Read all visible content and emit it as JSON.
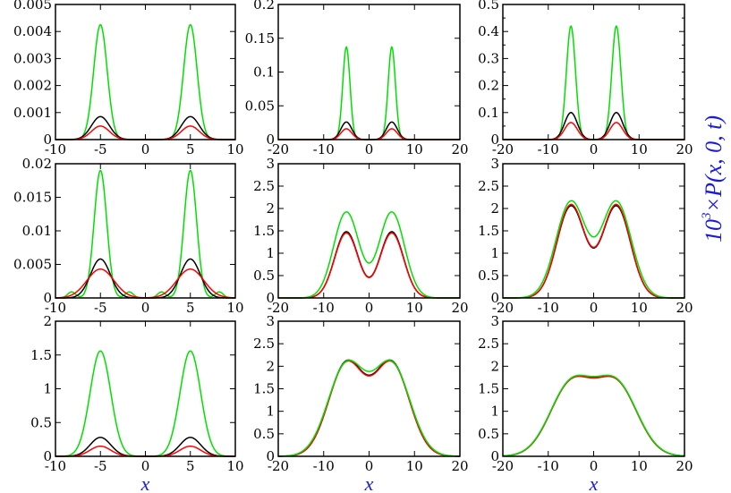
{
  "figure": {
    "ylabel_prefix": "10",
    "ylabel_exponent": "3",
    "ylabel_rest": "×P(x, 0, t)",
    "xlabel": "x"
  },
  "chart_data": [
    {
      "type": "line",
      "row": 0,
      "col": 0,
      "xlim": [
        -10,
        10
      ],
      "ylim": [
        0,
        0.005
      ],
      "xticks": [
        -10,
        -5,
        0,
        5,
        10
      ],
      "yticks": [
        0,
        0.001,
        0.002,
        0.003,
        0.004,
        0.005
      ],
      "xtick_labels": [
        "-10",
        "-5",
        "0",
        "5",
        "10"
      ],
      "ytick_labels": [
        "0",
        "0.001",
        "0.002",
        "0.003",
        "0.004",
        "0.005"
      ],
      "xlabel": "",
      "series": [
        {
          "color": "#00e000",
          "peaks": [
            {
              "mu": -5,
              "sigma": 0.75,
              "amp": 0.00425
            },
            {
              "mu": 5,
              "sigma": 0.75,
              "amp": 0.00425
            }
          ]
        },
        {
          "color": "#000000",
          "peaks": [
            {
              "mu": -5,
              "sigma": 1.0,
              "amp": 0.00085
            },
            {
              "mu": 5,
              "sigma": 1.0,
              "amp": 0.00085
            }
          ]
        },
        {
          "color": "#ff0000",
          "peaks": [
            {
              "mu": -5,
              "sigma": 1.0,
              "amp": 0.0005
            },
            {
              "mu": 5,
              "sigma": 1.0,
              "amp": 0.0005
            }
          ]
        }
      ]
    },
    {
      "type": "line",
      "row": 0,
      "col": 1,
      "xlim": [
        -20,
        20
      ],
      "ylim": [
        0,
        0.2
      ],
      "xticks": [
        -20,
        -10,
        0,
        10,
        20
      ],
      "yticks": [
        0,
        0.05,
        0.1,
        0.15,
        0.2
      ],
      "xtick_labels": [
        "-20",
        "-10",
        "0",
        "10",
        "20"
      ],
      "ytick_labels": [
        "0",
        "0.05",
        "0.1",
        "0.15",
        "0.2"
      ],
      "xlabel": "",
      "series": [
        {
          "color": "#00e000",
          "peaks": [
            {
              "mu": -5,
              "sigma": 0.8,
              "amp": 0.137
            },
            {
              "mu": 5,
              "sigma": 0.8,
              "amp": 0.137
            }
          ]
        },
        {
          "color": "#000000",
          "peaks": [
            {
              "mu": -5,
              "sigma": 1.2,
              "amp": 0.026
            },
            {
              "mu": 5,
              "sigma": 1.2,
              "amp": 0.026
            }
          ]
        },
        {
          "color": "#ff0000",
          "peaks": [
            {
              "mu": -5,
              "sigma": 1.2,
              "amp": 0.016
            },
            {
              "mu": 5,
              "sigma": 1.2,
              "amp": 0.016
            }
          ]
        }
      ]
    },
    {
      "type": "line",
      "row": 0,
      "col": 2,
      "xlim": [
        -20,
        20
      ],
      "ylim": [
        0,
        0.5
      ],
      "xticks": [
        -20,
        -10,
        0,
        10,
        20
      ],
      "yticks": [
        0,
        0.05,
        0.1,
        0.15,
        0.2,
        0.25,
        0.3,
        0.35,
        0.4,
        0.45,
        0.5
      ],
      "xtick_labels": [
        "-20",
        "-10",
        "0",
        "10",
        "20"
      ],
      "ytick_labels": [
        "0",
        "",
        "0.1",
        "",
        "0.2",
        "",
        "0.3",
        "",
        "0.4",
        "",
        "0.5"
      ],
      "xlabel": "",
      "series": [
        {
          "color": "#00e000",
          "peaks": [
            {
              "mu": -5,
              "sigma": 1.0,
              "amp": 0.42
            },
            {
              "mu": 5,
              "sigma": 1.0,
              "amp": 0.42
            }
          ]
        },
        {
          "color": "#000000",
          "peaks": [
            {
              "mu": -5,
              "sigma": 1.4,
              "amp": 0.1
            },
            {
              "mu": 5,
              "sigma": 1.4,
              "amp": 0.1
            }
          ]
        },
        {
          "color": "#ff0000",
          "peaks": [
            {
              "mu": -5,
              "sigma": 1.4,
              "amp": 0.063
            },
            {
              "mu": 5,
              "sigma": 1.4,
              "amp": 0.063
            }
          ]
        }
      ]
    },
    {
      "type": "line",
      "row": 1,
      "col": 0,
      "xlim": [
        -10,
        10
      ],
      "ylim": [
        0,
        0.02
      ],
      "xticks": [
        -10,
        -5,
        0,
        5,
        10
      ],
      "yticks": [
        0,
        0.005,
        0.01,
        0.015,
        0.02
      ],
      "xtick_labels": [
        "-10",
        "-5",
        "0",
        "5",
        "10"
      ],
      "ytick_labels": [
        "0",
        "0.005",
        "0.01",
        "0.015",
        "0.02"
      ],
      "xlabel": "",
      "series": [
        {
          "color": "#00e000",
          "peaks": [
            {
              "mu": -5,
              "sigma": 0.7,
              "amp": 0.019
            },
            {
              "mu": 5,
              "sigma": 0.7,
              "amp": 0.019
            },
            {
              "mu": -8.2,
              "sigma": 0.45,
              "amp": 0.0009
            },
            {
              "mu": -1.8,
              "sigma": 0.45,
              "amp": 0.0009
            },
            {
              "mu": 1.8,
              "sigma": 0.45,
              "amp": 0.0009
            },
            {
              "mu": 8.2,
              "sigma": 0.45,
              "amp": 0.0009
            }
          ]
        },
        {
          "color": "#000000",
          "peaks": [
            {
              "mu": -5,
              "sigma": 1.1,
              "amp": 0.0058
            },
            {
              "mu": 5,
              "sigma": 1.1,
              "amp": 0.0058
            }
          ]
        },
        {
          "color": "#ff0000",
          "peaks": [
            {
              "mu": -5,
              "sigma": 1.5,
              "amp": 0.0043
            },
            {
              "mu": 5,
              "sigma": 1.5,
              "amp": 0.0043
            }
          ]
        }
      ]
    },
    {
      "type": "line",
      "row": 1,
      "col": 1,
      "xlim": [
        -20,
        20
      ],
      "ylim": [
        0,
        3
      ],
      "xticks": [
        -20,
        -10,
        0,
        10,
        20
      ],
      "yticks": [
        0,
        0.5,
        1,
        1.5,
        2,
        2.5,
        3
      ],
      "xtick_labels": [
        "-20",
        "-10",
        "0",
        "10",
        "20"
      ],
      "ytick_labels": [
        "0",
        "0.5",
        "1",
        "1.5",
        "2",
        "2.5",
        "3"
      ],
      "xlabel": "",
      "series": [
        {
          "color": "#000000",
          "peaks": [
            {
              "mu": -5,
              "sigma": 2.6,
              "amp": 1.48
            },
            {
              "mu": 5,
              "sigma": 2.6,
              "amp": 1.48
            }
          ]
        },
        {
          "color": "#ff0000",
          "peaks": [
            {
              "mu": -5,
              "sigma": 2.6,
              "amp": 1.45
            },
            {
              "mu": 5,
              "sigma": 2.6,
              "amp": 1.45
            }
          ]
        },
        {
          "color": "#00e000",
          "peaks": [
            {
              "mu": -5,
              "sigma": 2.8,
              "amp": 1.92
            },
            {
              "mu": 5,
              "sigma": 2.8,
              "amp": 1.92
            }
          ]
        }
      ]
    },
    {
      "type": "line",
      "row": 1,
      "col": 2,
      "xlim": [
        -20,
        20
      ],
      "ylim": [
        0,
        3
      ],
      "xticks": [
        -20,
        -10,
        0,
        10,
        20
      ],
      "yticks": [
        0,
        0.5,
        1,
        1.5,
        2,
        2.5,
        3
      ],
      "xtick_labels": [
        "-20",
        "-10",
        "0",
        "10",
        "20"
      ],
      "ytick_labels": [
        "0",
        "0.5",
        "1",
        "1.5",
        "2",
        "2.5",
        "3"
      ],
      "xlabel": "",
      "series": [
        {
          "color": "#000000",
          "peaks": [
            {
              "mu": -5,
              "sigma": 3.1,
              "amp": 2.05
            },
            {
              "mu": 5,
              "sigma": 3.1,
              "amp": 2.05
            }
          ]
        },
        {
          "color": "#ff0000",
          "peaks": [
            {
              "mu": -5,
              "sigma": 3.1,
              "amp": 2.08
            },
            {
              "mu": 5,
              "sigma": 3.1,
              "amp": 2.08
            }
          ]
        },
        {
          "color": "#00e000",
          "peaks": [
            {
              "mu": -5,
              "sigma": 3.3,
              "amp": 2.15
            },
            {
              "mu": 5,
              "sigma": 3.3,
              "amp": 2.15
            }
          ]
        }
      ]
    },
    {
      "type": "line",
      "row": 2,
      "col": 0,
      "xlim": [
        -10,
        10
      ],
      "ylim": [
        0,
        2
      ],
      "xticks": [
        -10,
        -5,
        0,
        5,
        10
      ],
      "yticks": [
        0,
        0.5,
        1,
        1.5,
        2
      ],
      "xtick_labels": [
        "-10",
        "-5",
        "0",
        "5",
        "10"
      ],
      "ytick_labels": [
        "0",
        "0.5",
        "1",
        "1.5",
        "2"
      ],
      "xlabel": "x",
      "series": [
        {
          "color": "#00e000",
          "peaks": [
            {
              "mu": -5,
              "sigma": 1.15,
              "amp": 1.56
            },
            {
              "mu": 5,
              "sigma": 1.15,
              "amp": 1.56
            }
          ]
        },
        {
          "color": "#000000",
          "peaks": [
            {
              "mu": -5,
              "sigma": 1.15,
              "amp": 0.28
            },
            {
              "mu": 5,
              "sigma": 1.15,
              "amp": 0.28
            }
          ]
        },
        {
          "color": "#ff0000",
          "peaks": [
            {
              "mu": -5,
              "sigma": 1.15,
              "amp": 0.15
            },
            {
              "mu": 5,
              "sigma": 1.15,
              "amp": 0.15
            }
          ]
        }
      ]
    },
    {
      "type": "line",
      "row": 2,
      "col": 1,
      "xlim": [
        -20,
        20
      ],
      "ylim": [
        0,
        3
      ],
      "xticks": [
        -20,
        -10,
        0,
        10,
        20
      ],
      "yticks": [
        0,
        0.5,
        1,
        1.5,
        2,
        2.5,
        3
      ],
      "xtick_labels": [
        "-20",
        "-10",
        "0",
        "10",
        "20"
      ],
      "ytick_labels": [
        "0",
        "0.5",
        "1",
        "1.5",
        "2",
        "2.5",
        "3"
      ],
      "xlabel": "x",
      "series": [
        {
          "color": "#000000",
          "peaks": [
            {
              "mu": -5,
              "sigma": 3.9,
              "amp": 2.05
            },
            {
              "mu": 5,
              "sigma": 3.9,
              "amp": 2.05
            }
          ]
        },
        {
          "color": "#ff0000",
          "peaks": [
            {
              "mu": -5,
              "sigma": 3.9,
              "amp": 2.03
            },
            {
              "mu": 5,
              "sigma": 3.9,
              "amp": 2.03
            }
          ]
        },
        {
          "color": "#00e000",
          "peaks": [
            {
              "mu": -5,
              "sigma": 4.05,
              "amp": 2.02
            },
            {
              "mu": 5,
              "sigma": 4.05,
              "amp": 2.02
            }
          ]
        }
      ]
    },
    {
      "type": "line",
      "row": 2,
      "col": 2,
      "xlim": [
        -20,
        20
      ],
      "ylim": [
        0,
        3
      ],
      "xticks": [
        -20,
        -10,
        0,
        10,
        20
      ],
      "yticks": [
        0,
        0.5,
        1,
        1.5,
        2,
        2.5,
        3
      ],
      "xtick_labels": [
        "-20",
        "-10",
        "0",
        "10",
        "20"
      ],
      "ytick_labels": [
        "0",
        "0.5",
        "1",
        "1.5",
        "2",
        "2.5",
        "3"
      ],
      "xlabel": "x",
      "series": [
        {
          "color": "#000000",
          "peaks": [
            {
              "mu": -5,
              "sigma": 4.6,
              "amp": 1.58
            },
            {
              "mu": 5,
              "sigma": 4.6,
              "amp": 1.58
            }
          ]
        },
        {
          "color": "#ff0000",
          "peaks": [
            {
              "mu": -5,
              "sigma": 4.6,
              "amp": 1.57
            },
            {
              "mu": 5,
              "sigma": 4.6,
              "amp": 1.57
            }
          ]
        },
        {
          "color": "#00e000",
          "peaks": [
            {
              "mu": -5,
              "sigma": 4.65,
              "amp": 1.58
            },
            {
              "mu": 5,
              "sigma": 4.65,
              "amp": 1.58
            }
          ]
        }
      ]
    }
  ]
}
